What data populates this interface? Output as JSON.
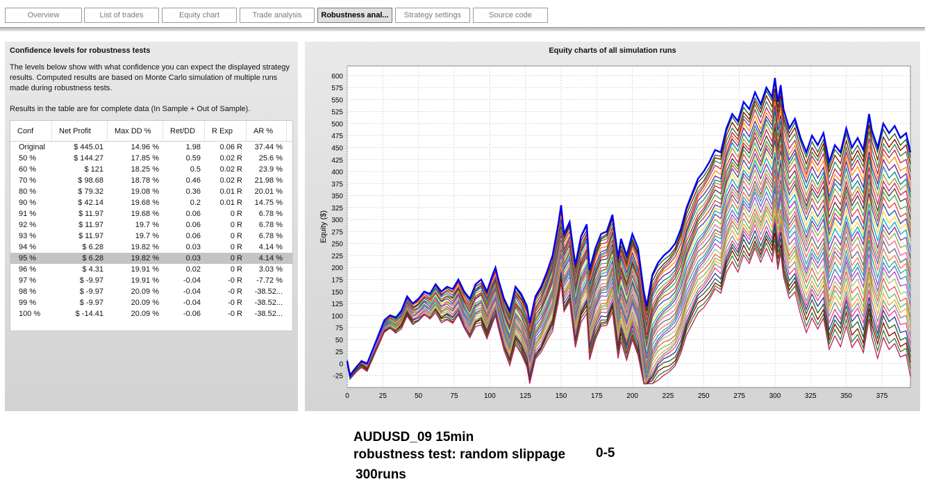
{
  "tabs": [
    {
      "label": "Overview",
      "active": false
    },
    {
      "label": "List of trades",
      "active": false
    },
    {
      "label": "Equity chart",
      "active": false
    },
    {
      "label": "Trade analysis",
      "active": false
    },
    {
      "label": "Robustness anal...",
      "active": true
    },
    {
      "label": "Strategy settings",
      "active": false
    },
    {
      "label": "Source code",
      "active": false
    }
  ],
  "left_panel": {
    "title": "Confidence levels for robustness tests",
    "description": "The levels below show with what confidence you can expect the displayed strategy results. Computed results are based on Monte Carlo simulation of multiple runs made during robustness tests.",
    "note": "Results in the table are for complete data (In Sample + Out of Sample).",
    "table": {
      "headers": [
        "Conf",
        "Net Profit",
        "Max DD %",
        "Ret/DD",
        "R Exp",
        "AR %"
      ],
      "selected_row": 10,
      "rows": [
        [
          "Original",
          "$ 445.01",
          "14.96 %",
          "1.98",
          "0.06 R",
          "37.44 %"
        ],
        [
          "50 %",
          "$ 144.27",
          "17.85 %",
          "0.59",
          "0.02 R",
          "25.6 %"
        ],
        [
          "60 %",
          "$ 121",
          "18.25 %",
          "0.5",
          "0.02 R",
          "23.9 %"
        ],
        [
          "70 %",
          "$ 98.68",
          "18.78 %",
          "0.46",
          "0.02 R",
          "21.98 %"
        ],
        [
          "80 %",
          "$ 79.32",
          "19.08 %",
          "0.36",
          "0.01 R",
          "20.01 %"
        ],
        [
          "90 %",
          "$ 42.14",
          "19.68 %",
          "0.2",
          "0.01 R",
          "14.75 %"
        ],
        [
          "91 %",
          "$ 11.97",
          "19.68 %",
          "0.06",
          "0 R",
          "6.78 %"
        ],
        [
          "92 %",
          "$ 11.97",
          "19.7 %",
          "0.06",
          "0 R",
          "6.78 %"
        ],
        [
          "93 %",
          "$ 11.97",
          "19.7 %",
          "0.06",
          "0 R",
          "6.78 %"
        ],
        [
          "94 %",
          "$ 6.28",
          "19.82 %",
          "0.03",
          "0 R",
          "4.14 %"
        ],
        [
          "95 %",
          "$ 6.28",
          "19.82 %",
          "0.03",
          "0 R",
          "4.14 %"
        ],
        [
          "96 %",
          "$ 4.31",
          "19.91 %",
          "0.02",
          "0 R",
          "3.03 %"
        ],
        [
          "97 %",
          "$ -9.97",
          "19.91 %",
          "-0.04",
          "-0 R",
          "-7.72 %"
        ],
        [
          "98 %",
          "$ -9.97",
          "20.09 %",
          "-0.04",
          "-0 R",
          "-38.52..."
        ],
        [
          "99 %",
          "$ -9.97",
          "20.09 %",
          "-0.04",
          "-0 R",
          "-38.52..."
        ],
        [
          "100 %",
          "$ -14.41",
          "20.09 %",
          "-0.06",
          "-0 R",
          "-38.52..."
        ]
      ]
    }
  },
  "chart_data": {
    "type": "line",
    "title": "Equity charts of all simulation runs",
    "xlabel": "",
    "ylabel": "Equity ($)",
    "xlim": [
      0,
      395
    ],
    "ylim": [
      -50,
      620
    ],
    "xticks": [
      0,
      25,
      50,
      75,
      100,
      125,
      150,
      175,
      200,
      225,
      250,
      275,
      300,
      325,
      350,
      375
    ],
    "yticks": [
      -25,
      0,
      25,
      50,
      75,
      100,
      125,
      150,
      175,
      200,
      225,
      250,
      275,
      300,
      325,
      350,
      375,
      400,
      425,
      450,
      475,
      500,
      525,
      550,
      575,
      600
    ],
    "grid": true,
    "main_series_color": "#0000ee",
    "main_series": {
      "x": [
        0,
        2,
        6,
        10,
        14,
        18,
        22,
        26,
        30,
        34,
        38,
        42,
        46,
        50,
        54,
        58,
        62,
        66,
        70,
        74,
        78,
        82,
        86,
        90,
        94,
        98,
        102,
        104,
        106,
        110,
        114,
        118,
        122,
        126,
        128,
        132,
        136,
        140,
        144,
        148,
        150,
        152,
        156,
        160,
        164,
        168,
        170,
        174,
        178,
        182,
        186,
        190,
        192,
        196,
        200,
        204,
        208,
        210,
        214,
        218,
        222,
        226,
        230,
        234,
        238,
        242,
        246,
        250,
        254,
        258,
        262,
        266,
        270,
        274,
        278,
        282,
        286,
        290,
        294,
        298,
        300,
        302,
        304,
        306,
        310,
        314,
        318,
        322,
        326,
        330,
        334,
        338,
        342,
        346,
        350,
        354,
        358,
        362,
        366,
        368,
        372,
        376,
        380,
        384,
        388,
        392,
        395
      ],
      "y": [
        5,
        -25,
        -10,
        5,
        0,
        30,
        60,
        90,
        100,
        95,
        110,
        140,
        125,
        135,
        150,
        145,
        165,
        150,
        160,
        155,
        175,
        150,
        135,
        165,
        175,
        150,
        185,
        200,
        175,
        135,
        110,
        160,
        145,
        120,
        85,
        140,
        160,
        190,
        225,
        290,
        330,
        270,
        295,
        205,
        265,
        290,
        195,
        240,
        270,
        275,
        310,
        220,
        260,
        225,
        270,
        240,
        150,
        120,
        185,
        210,
        225,
        235,
        250,
        280,
        325,
        355,
        385,
        400,
        420,
        445,
        440,
        490,
        520,
        505,
        545,
        530,
        565,
        540,
        575,
        555,
        595,
        545,
        580,
        530,
        490,
        510,
        470,
        440,
        475,
        455,
        480,
        420,
        455,
        440,
        490,
        450,
        470,
        445,
        520,
        485,
        450,
        500,
        480,
        495,
        470,
        480,
        440
      ]
    },
    "simulation_runs_shown": "many colored runs between main series and lower envelope"
  },
  "annotation": {
    "line1": "AUDUSD_09 15min",
    "line2": "robustness test: random slippage",
    "line2_suffix": "0-5",
    "line3": "300runs"
  }
}
